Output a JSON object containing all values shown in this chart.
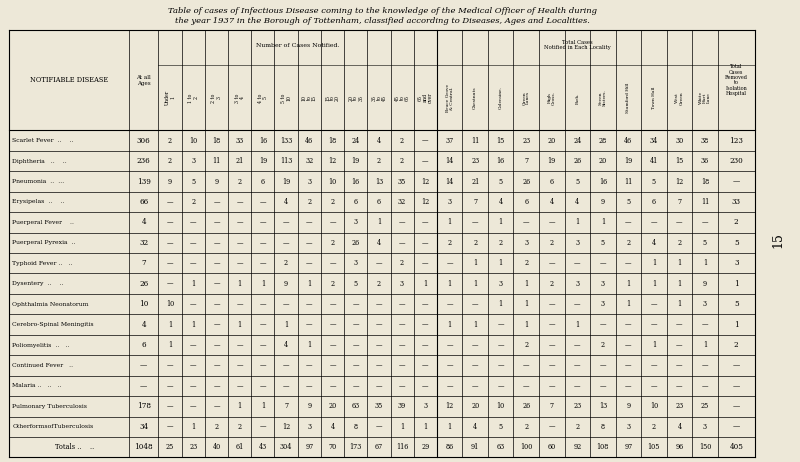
{
  "title_line1": "Table of cases of Infectious Disease coming to the knowledge of the Medical Officer of Health during",
  "title_line2": "the year 1937 in the Borough of Tottenham, classified according to Diseases, Ages and Localities.",
  "bg_color": "#ede8d8",
  "table_bg": "#ede8d8",
  "page_number": "15",
  "col_headers_age": [
    "Under\n1",
    "1 to\n2",
    "2 to\n3",
    "3 to\n4",
    "4 to\n5",
    "5 to\n10",
    "10\nto\n15",
    "15\nto\n20",
    "20\nto\n35",
    "35\nto\n45",
    "45\nto\n65",
    "65\nand\nover"
  ],
  "col_headers_locality": [
    "Bruce Grove\n& Central.",
    "Chestnuts",
    "Coleraine.",
    "Green\nLanes",
    "High\nCross.",
    "Park.",
    "Seven\nSisters.",
    "Stamford Hill",
    "Town Hall",
    "West\nGreen",
    "White\nHart\nLane"
  ],
  "diseases": [
    "Scarlet Fever  ..    ..",
    "Diphtheria   ..    ..",
    "Pneumonia  ..  ...",
    "Erysipelas  ..    ..",
    "Puerperal Fever    ..",
    "Puerperal Pyrexia  ..",
    "Typhoid Fever ..   ..",
    "Dysentery  ..    ..",
    "Ophthalmia Neonatorum",
    "Cerebro-Spinal Meningitis",
    "Poliomyelitis  ..   ..",
    "Continued Fever   ..",
    "Malaria ..   ..   ..",
    "Pulmonary Tuberculosis",
    "OtherformsofTuberculosis",
    "Totals ..    .."
  ],
  "at_all_ages": [
    "306",
    "236",
    "139",
    "66",
    "4",
    "32",
    "7",
    "26",
    "10",
    "4",
    "6",
    "—",
    "—",
    "178",
    "34",
    "1048"
  ],
  "age_data": [
    [
      "2",
      "10",
      "18",
      "33",
      "16",
      "133",
      "46",
      "18",
      "24",
      "4",
      "2",
      "—"
    ],
    [
      "2",
      "3",
      "11",
      "21",
      "19",
      "113",
      "32",
      "12",
      "19",
      "2",
      "2",
      "—"
    ],
    [
      "9",
      "5",
      "9",
      "2",
      "6",
      "19",
      "3",
      "10",
      "16",
      "13",
      "35",
      "12"
    ],
    [
      "—",
      "2",
      "—",
      "—",
      "—",
      "4",
      "2",
      "2",
      "6",
      "6",
      "32",
      "12"
    ],
    [
      "—",
      "—",
      "—",
      "—",
      "—",
      "—",
      "—",
      "—",
      "3",
      "1",
      "—",
      "—"
    ],
    [
      "—",
      "—",
      "—",
      "—",
      "—",
      "—",
      "—",
      "2",
      "26",
      "4",
      "—",
      "—"
    ],
    [
      "—",
      "—",
      "—",
      "—",
      "—",
      "2",
      "—",
      "—",
      "3",
      "—",
      "2",
      "—"
    ],
    [
      "—",
      "1",
      "—",
      "1",
      "1",
      "9",
      "1",
      "2",
      "5",
      "2",
      "3",
      "1"
    ],
    [
      "10",
      "—",
      "—",
      "—",
      "—",
      "—",
      "—",
      "—",
      "—",
      "—",
      "—",
      "—"
    ],
    [
      "1",
      "1",
      "—",
      "1",
      "—",
      "1",
      "—",
      "—",
      "—",
      "—",
      "—",
      "—"
    ],
    [
      "1",
      "—",
      "—",
      "—",
      "—",
      "4",
      "1",
      "—",
      "—",
      "—",
      "—",
      "—"
    ],
    [
      "—",
      "—",
      "—",
      "—",
      "—",
      "—",
      "—",
      "—",
      "—",
      "—",
      "—",
      "—"
    ],
    [
      "—",
      "—",
      "—",
      "—",
      "—",
      "—",
      "—",
      "—",
      "—",
      "—",
      "—",
      "—"
    ],
    [
      "—",
      "—",
      "—",
      "1",
      "1",
      "7",
      "9",
      "20",
      "63",
      "35",
      "39",
      "3"
    ],
    [
      "—",
      "1",
      "2",
      "2",
      "—",
      "12",
      "3",
      "4",
      "8",
      "—",
      "1",
      "1"
    ],
    [
      "25",
      "23",
      "40",
      "61",
      "43",
      "304",
      "97",
      "70",
      "173",
      "67",
      "116",
      "29"
    ]
  ],
  "locality_data": [
    [
      "37",
      "11",
      "15",
      "23",
      "20",
      "24",
      "28",
      "46",
      "34",
      "30",
      "38"
    ],
    [
      "14",
      "23",
      "16",
      "7",
      "19",
      "26",
      "20",
      "19",
      "41",
      "15",
      "36"
    ],
    [
      "14",
      "21",
      "5",
      "26",
      "6",
      "5",
      "16",
      "11",
      "5",
      "12",
      "18"
    ],
    [
      "3",
      "7",
      "4",
      "6",
      "4",
      "4",
      "9",
      "5",
      "6",
      "7",
      "11"
    ],
    [
      "1",
      "—",
      "1",
      "—",
      "—",
      "1",
      "1",
      "—",
      "—",
      "—",
      "—"
    ],
    [
      "2",
      "2",
      "2",
      "3",
      "2",
      "3",
      "5",
      "2",
      "4",
      "2",
      "5"
    ],
    [
      "—",
      "1",
      "1",
      "2",
      "—",
      "—",
      "—",
      "—",
      "1",
      "1",
      "1"
    ],
    [
      "1",
      "1",
      "3",
      "1",
      "2",
      "3",
      "3",
      "1",
      "1",
      "1",
      "9"
    ],
    [
      "—",
      "—",
      "1",
      "1",
      "—",
      "—",
      "3",
      "1",
      "—",
      "1",
      "3"
    ],
    [
      "1",
      "1",
      "—",
      "1",
      "—",
      "1",
      "—",
      "—",
      "—",
      "—",
      "—"
    ],
    [
      "—",
      "—",
      "—",
      "2",
      "—",
      "—",
      "2",
      "—",
      "1",
      "—",
      "1"
    ],
    [
      "—",
      "—",
      "—",
      "—",
      "—",
      "—",
      "—",
      "—",
      "—",
      "—",
      "—"
    ],
    [
      "—",
      "—",
      "—",
      "—",
      "—",
      "—",
      "—",
      "—",
      "—",
      "—",
      "—"
    ],
    [
      "12",
      "20",
      "10",
      "26",
      "7",
      "23",
      "13",
      "9",
      "10",
      "23",
      "25"
    ],
    [
      "1",
      "4",
      "5",
      "2",
      "—",
      "2",
      "8",
      "3",
      "2",
      "4",
      "3"
    ],
    [
      "86",
      "91",
      "63",
      "100",
      "60",
      "92",
      "108",
      "97",
      "105",
      "96",
      "150"
    ]
  ],
  "isolation_col": [
    "123",
    "230",
    "—",
    "33",
    "2",
    "5",
    "3",
    "1",
    "5",
    "1",
    "2",
    "—",
    "—",
    "—",
    "—",
    "405"
  ]
}
